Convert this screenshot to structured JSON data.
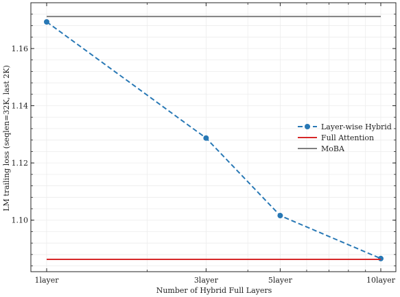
{
  "chart_data": {
    "type": "line",
    "x": [
      "1layer",
      "3layer",
      "5layer",
      "10layer"
    ],
    "xlabel": "Number of Hybrid Full Layers",
    "ylabel": "LM trailing loss (seqlen=32K, last 2K)",
    "ylim": [
      1.082,
      1.176
    ],
    "yticks": [
      1.1,
      1.12,
      1.14,
      1.16
    ],
    "ytick_labels": [
      "1.10",
      "1.12",
      "1.14",
      "1.16"
    ],
    "grid": true,
    "legend_position": "center-right",
    "series": [
      {
        "name": "Layer-wise Hybrid",
        "values": [
          1.1693,
          1.1287,
          1.1016,
          1.0866
        ],
        "color": "#2878b5",
        "style": "dashed",
        "marker": "circle"
      },
      {
        "name": "Full Attention",
        "values": [
          1.0863,
          1.0863,
          1.0863,
          1.0863
        ],
        "color": "#d62728",
        "style": "solid",
        "marker": "none"
      },
      {
        "name": "MoBA",
        "values": [
          1.1712,
          1.1712,
          1.1712,
          1.1712
        ],
        "color": "#7f7f7f",
        "style": "solid",
        "marker": "none"
      }
    ]
  }
}
